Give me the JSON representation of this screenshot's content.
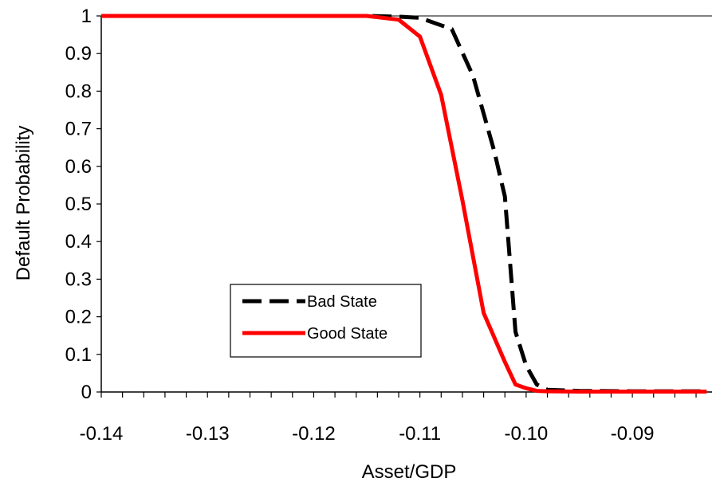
{
  "chart_data": {
    "type": "line",
    "title": "",
    "xlabel": "Asset/GDP",
    "ylabel": "Default Probability",
    "xlim": [
      -0.14,
      -0.0825
    ],
    "ylim": [
      0,
      1
    ],
    "x_ticks": [
      -0.14,
      -0.13,
      -0.12,
      -0.11,
      -0.1,
      -0.09
    ],
    "x_tick_labels": [
      "-0.14",
      "-0.13",
      "-0.12",
      "-0.11",
      "-0.10",
      "-0.09"
    ],
    "y_ticks": [
      0,
      0.1,
      0.2,
      0.3,
      0.4,
      0.5,
      0.6,
      0.7,
      0.8,
      0.9,
      1
    ],
    "y_tick_labels": [
      "0",
      "0.1",
      "0.2",
      "0.3",
      "0.4",
      "0.5",
      "0.6",
      "0.7",
      "0.8",
      "0.9",
      "1"
    ],
    "grid": false,
    "legend_position": "lower-left",
    "series": [
      {
        "name": "Bad State",
        "color": "#000000",
        "style": "dashed",
        "x": [
          -0.14,
          -0.115,
          -0.112,
          -0.11,
          -0.108,
          -0.107,
          -0.105,
          -0.103,
          -0.102,
          -0.101,
          -0.1,
          -0.099,
          -0.098,
          -0.095,
          -0.09,
          -0.085,
          -0.083
        ],
        "y": [
          1.0,
          1.0,
          0.998,
          0.995,
          0.975,
          0.965,
          0.84,
          0.64,
          0.52,
          0.16,
          0.07,
          0.02,
          0.006,
          0.003,
          0.002,
          0.002,
          0.002
        ]
      },
      {
        "name": "Good State",
        "color": "#ff0000",
        "style": "solid",
        "x": [
          -0.14,
          -0.115,
          -0.112,
          -0.11,
          -0.108,
          -0.106,
          -0.104,
          -0.102,
          -0.101,
          -0.1,
          -0.099,
          -0.098,
          -0.095,
          -0.09,
          -0.085,
          -0.083
        ],
        "y": [
          1.0,
          1.0,
          0.99,
          0.945,
          0.79,
          0.51,
          0.21,
          0.08,
          0.02,
          0.01,
          0.003,
          0.002,
          0.001,
          0.001,
          0.001,
          0.001
        ]
      }
    ]
  },
  "legend": {
    "items": [
      {
        "label": "Bad State",
        "color": "#000000",
        "style": "dashed"
      },
      {
        "label": "Good State",
        "color": "#ff0000",
        "style": "solid"
      }
    ]
  }
}
